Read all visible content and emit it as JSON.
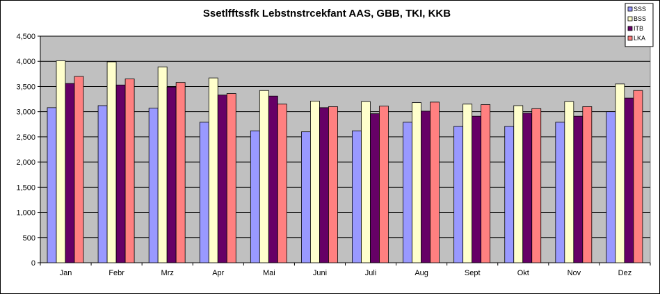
{
  "chart_data": {
    "type": "bar",
    "title": "Ssetlfftssfk Lebstnstrcekfant AAS, GBB, TKI, KKB",
    "xlabel": "",
    "ylabel": "",
    "ylim": [
      0,
      4500
    ],
    "ytick_step": 500,
    "grid": true,
    "legend_position": "top-right",
    "categories": [
      "Jan",
      "Febr",
      "Mrz",
      "Apr",
      "Mai",
      "Juni",
      "Juli",
      "Aug",
      "Sept",
      "Okt",
      "Nov",
      "Dez"
    ],
    "series": [
      {
        "name": "SSS",
        "color": "#9999ff",
        "values": [
          3080,
          3120,
          3070,
          2790,
          2620,
          2600,
          2620,
          2790,
          2710,
          2710,
          2790,
          3000
        ]
      },
      {
        "name": "BSS",
        "color": "#ffffcc",
        "values": [
          4010,
          3990,
          3890,
          3670,
          3420,
          3210,
          3200,
          3180,
          3150,
          3120,
          3200,
          3550
        ]
      },
      {
        "name": "ITB",
        "color": "#660066",
        "values": [
          3560,
          3530,
          3490,
          3330,
          3310,
          3080,
          2960,
          3010,
          2910,
          2970,
          2910,
          3270
        ]
      },
      {
        "name": "LKA",
        "color": "#ff8080",
        "values": [
          3700,
          3650,
          3580,
          3360,
          3150,
          3100,
          3110,
          3190,
          3140,
          3060,
          3100,
          3420
        ]
      }
    ],
    "plot_background": "#c0c0c0"
  }
}
